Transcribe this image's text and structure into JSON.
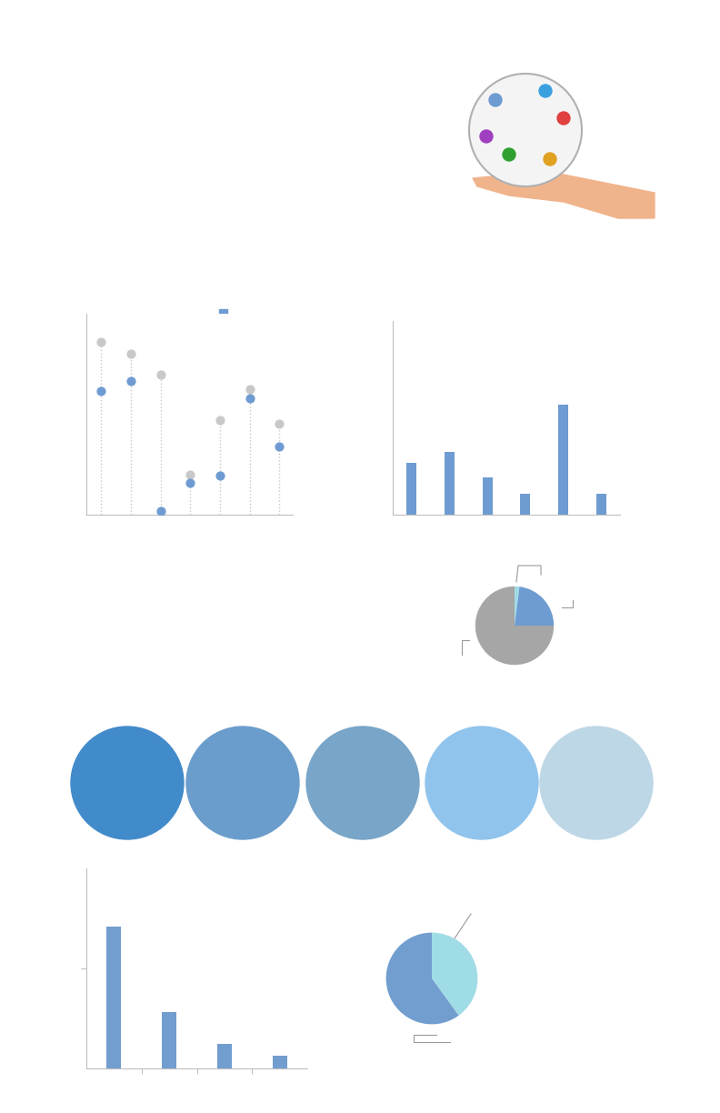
{
  "chart_data": [
    {
      "type": "dot",
      "categories": [
        null,
        null,
        null,
        null,
        null,
        null,
        null
      ],
      "series": [
        {
          "color": "#6e9bd1",
          "values": [
            61.5,
            66.5,
            1.8,
            15.8,
            19.5,
            57.9,
            33.9
          ]
        },
        {
          "color": "#c8c8c8",
          "values": [
            86,
            80,
            69.7,
            19.9,
            47,
            62.4,
            45.2
          ]
        }
      ],
      "ylim": [
        0,
        100
      ],
      "yticks": [],
      "tick_labels": false
    },
    {
      "type": "bar",
      "categories": [
        null,
        null,
        null,
        null,
        null,
        null
      ],
      "values": [
        26.8,
        32.4,
        19.2,
        10.8,
        56.8,
        10.8
      ],
      "color": "#6e9bd1",
      "ylim": [
        0,
        100
      ],
      "yticks": [],
      "tick_labels": false
    },
    {
      "type": "pie",
      "values": [
        2,
        23,
        75
      ],
      "colors": [
        "#a0dce6",
        "#6e9bd1",
        "#a6a6a6"
      ]
    },
    {
      "type": "bar",
      "categories": [
        null,
        null,
        null,
        null
      ],
      "values": [
        70.9,
        28.2,
        12.3,
        6.4
      ],
      "color": "#729dcf",
      "ylim": [
        0,
        100
      ],
      "yticks": [
        50
      ],
      "tick_labels": false
    },
    {
      "type": "pie",
      "values": [
        40,
        60
      ],
      "colors": [
        "#a0dce6",
        "#729dcf"
      ]
    }
  ]
}
